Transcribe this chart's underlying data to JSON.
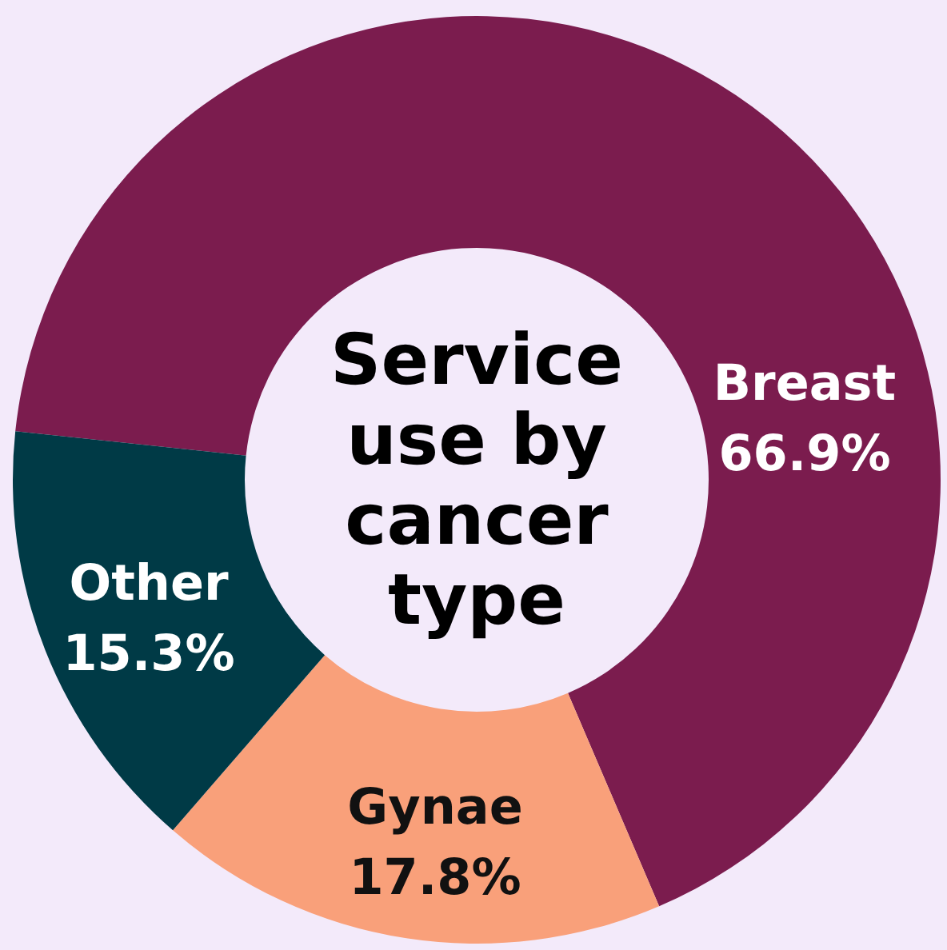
{
  "chart_data": {
    "type": "donut",
    "title": "Service use by cancer type",
    "categories": [
      "Breast",
      "Gynae",
      "Other"
    ],
    "values": [
      66.9,
      17.8,
      15.3
    ],
    "colors": [
      "#7b1c4e",
      "#f9a07a",
      "#003a46"
    ],
    "value_labels": [
      "66.9%",
      "17.8%",
      "15.3%"
    ],
    "legend": false
  }
}
